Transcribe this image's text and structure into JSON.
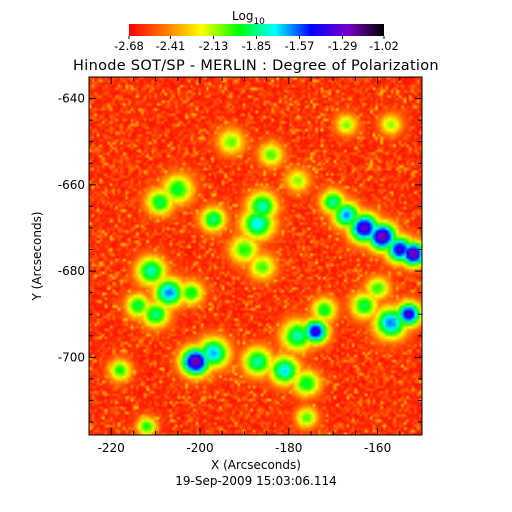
{
  "chart_data": {
    "type": "heatmap",
    "title": "Hinode SOT/SP - MERLIN : Degree of Polarization",
    "xlabel": "X (Arcseconds)",
    "ylabel": "Y (Arcseconds)",
    "date_label": "19-Sep-2009 15:03:06.114",
    "xlim": [
      -225,
      -150
    ],
    "ylim": [
      -718,
      -635
    ],
    "x_ticks": [
      {
        "value": -220,
        "label": "-220"
      },
      {
        "value": -200,
        "label": "-200"
      },
      {
        "value": -180,
        "label": "-180"
      },
      {
        "value": -160,
        "label": "-160"
      }
    ],
    "y_ticks": [
      {
        "value": -640,
        "label": "-640"
      },
      {
        "value": -660,
        "label": "-660"
      },
      {
        "value": -680,
        "label": "-680"
      },
      {
        "value": -700,
        "label": "-700"
      }
    ],
    "colorbar": {
      "title_base": "Log",
      "title_sub": "10",
      "range": [
        -2.68,
        -1.02
      ],
      "ticks": [
        {
          "value": -2.68,
          "label": "-2.68"
        },
        {
          "value": -2.41,
          "label": "-2.41"
        },
        {
          "value": -2.13,
          "label": "-2.13"
        },
        {
          "value": -1.85,
          "label": "-1.85"
        },
        {
          "value": -1.57,
          "label": "-1.57"
        },
        {
          "value": -1.29,
          "label": "-1.29"
        },
        {
          "value": -1.02,
          "label": "-1.02"
        }
      ],
      "colormap": [
        "#ff0000",
        "#ff7800",
        "#ffff00",
        "#00ff00",
        "#00ffff",
        "#0000ff",
        "#7800c8",
        "#000000"
      ]
    },
    "background_level": -2.62,
    "features": [
      {
        "x": -186,
        "y": -665,
        "level": -1.78,
        "radius": 2.4
      },
      {
        "x": -187,
        "y": -669,
        "level": -1.72,
        "radius": 2.6
      },
      {
        "x": -197,
        "y": -668,
        "level": -1.82,
        "radius": 2.0
      },
      {
        "x": -205,
        "y": -661,
        "level": -1.92,
        "radius": 2.5
      },
      {
        "x": -209,
        "y": -664,
        "level": -1.88,
        "radius": 2.2
      },
      {
        "x": -190,
        "y": -675,
        "level": -1.98,
        "radius": 2.4
      },
      {
        "x": -186,
        "y": -679,
        "level": -2.02,
        "radius": 2.2
      },
      {
        "x": -211,
        "y": -680,
        "level": -1.78,
        "radius": 2.4
      },
      {
        "x": -207,
        "y": -685,
        "level": -1.6,
        "radius": 2.4
      },
      {
        "x": -210,
        "y": -690,
        "level": -1.82,
        "radius": 2.2
      },
      {
        "x": -214,
        "y": -688,
        "level": -1.9,
        "radius": 2.0
      },
      {
        "x": -202,
        "y": -685,
        "level": -1.92,
        "radius": 2.0
      },
      {
        "x": -201,
        "y": -701,
        "level": -1.2,
        "radius": 2.3
      },
      {
        "x": -197,
        "y": -699,
        "level": -1.65,
        "radius": 2.5
      },
      {
        "x": -187,
        "y": -701,
        "level": -1.8,
        "radius": 2.4
      },
      {
        "x": -181,
        "y": -703,
        "level": -1.7,
        "radius": 2.4
      },
      {
        "x": -176,
        "y": -706,
        "level": -1.9,
        "radius": 2.2
      },
      {
        "x": -178,
        "y": -695,
        "level": -1.8,
        "radius": 2.6
      },
      {
        "x": -174,
        "y": -694,
        "level": -1.36,
        "radius": 2.0
      },
      {
        "x": -172,
        "y": -689,
        "level": -1.92,
        "radius": 2.0
      },
      {
        "x": -170,
        "y": -664,
        "level": -1.8,
        "radius": 2.0
      },
      {
        "x": -167,
        "y": -667,
        "level": -1.62,
        "radius": 2.2
      },
      {
        "x": -163,
        "y": -670,
        "level": -1.3,
        "radius": 2.4
      },
      {
        "x": -159,
        "y": -672,
        "level": -1.22,
        "radius": 2.3
      },
      {
        "x": -155,
        "y": -675,
        "level": -1.38,
        "radius": 2.2
      },
      {
        "x": -152,
        "y": -676,
        "level": -1.2,
        "radius": 2.0
      },
      {
        "x": -157,
        "y": -692,
        "level": -1.6,
        "radius": 2.6
      },
      {
        "x": -153,
        "y": -690,
        "level": -1.38,
        "radius": 2.0
      },
      {
        "x": -163,
        "y": -688,
        "level": -1.9,
        "radius": 2.2
      },
      {
        "x": -160,
        "y": -684,
        "level": -2.0,
        "radius": 2.0
      },
      {
        "x": -193,
        "y": -650,
        "level": -2.05,
        "radius": 2.2
      },
      {
        "x": -184,
        "y": -653,
        "level": -2.02,
        "radius": 2.0
      },
      {
        "x": -178,
        "y": -659,
        "level": -2.1,
        "radius": 2.0
      },
      {
        "x": -167,
        "y": -646,
        "level": -2.08,
        "radius": 1.8
      },
      {
        "x": -157,
        "y": -646,
        "level": -2.08,
        "radius": 1.8
      },
      {
        "x": -218,
        "y": -703,
        "level": -1.95,
        "radius": 1.8
      },
      {
        "x": -212,
        "y": -716,
        "level": -1.95,
        "radius": 1.6
      },
      {
        "x": -176,
        "y": -714,
        "level": -2.02,
        "radius": 1.8
      }
    ]
  }
}
